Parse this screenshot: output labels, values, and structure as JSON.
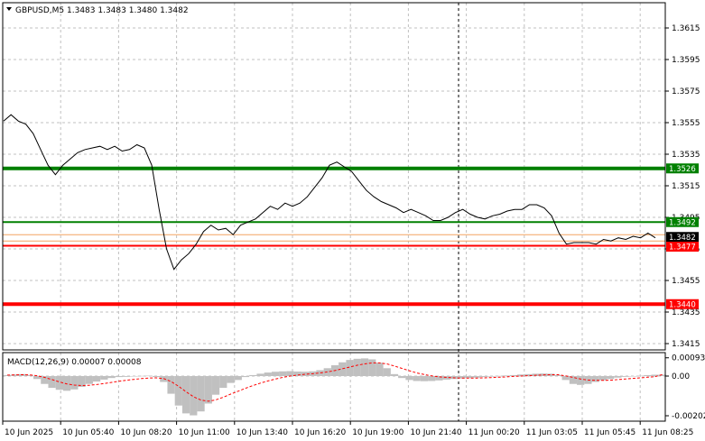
{
  "chart_data": [
    {
      "type": "line",
      "title": "GBPUSD,M5  1.3483 1.3483 1.3480 1.3482",
      "y_ticks": [
        1.3615,
        1.3595,
        1.3575,
        1.3555,
        1.3535,
        1.3515,
        1.3495,
        1.3475,
        1.3455,
        1.3435,
        1.3415
      ],
      "y_tick_labels": [
        "1.3615",
        "1.3595",
        "1.3575",
        "1.3555",
        "1.3535",
        "1.3515",
        "1.3495",
        "1.3475",
        "1.3455",
        "1.3435",
        "1.3415"
      ],
      "ylim": [
        1.3408,
        1.363
      ],
      "x_tick_labels": [
        "10 Jun 2025",
        "10 Jun 05:40",
        "10 Jun 08:20",
        "10 Jun 11:00",
        "10 Jun 13:40",
        "10 Jun 16:20",
        "10 Jun 19:00",
        "10 Jun 21:40",
        "11 Jun 00:20",
        "11 Jun 03:05",
        "11 Jun 05:45",
        "11 Jun 08:25"
      ],
      "levels": [
        {
          "value": 1.3526,
          "label": "1.3526",
          "color": "#008000"
        },
        {
          "value": 1.3492,
          "label": "1.3492",
          "color": "#008000"
        },
        {
          "value": 1.3482,
          "label": "1.3482",
          "color": "#000000"
        },
        {
          "value": 1.3477,
          "label": "1.3477",
          "color": "#ff0000"
        },
        {
          "value": 1.344,
          "label": "1.3440",
          "color": "#ff0000"
        }
      ],
      "series": [
        {
          "values": [
            1.3556,
            1.356,
            1.3556,
            1.3554,
            1.3548,
            1.3538,
            1.3528,
            1.3522,
            1.3528,
            1.3532,
            1.3536,
            1.3538,
            1.3539,
            1.354,
            1.3538,
            1.354,
            1.3537,
            1.3538,
            1.3541,
            1.3539,
            1.3528,
            1.35,
            1.3475,
            1.3462,
            1.3468,
            1.3472,
            1.3478,
            1.3486,
            1.349,
            1.3487,
            1.3488,
            1.3484,
            1.349,
            1.3492,
            1.3494,
            1.3498,
            1.3502,
            1.35,
            1.3504,
            1.3502,
            1.3504,
            1.3508,
            1.3514,
            1.352,
            1.3528,
            1.353,
            1.3527,
            1.3524,
            1.3518,
            1.3512,
            1.3508,
            1.3505,
            1.3503,
            1.3501,
            1.3498,
            1.35,
            1.3498,
            1.3496,
            1.3493,
            1.3493,
            1.3495,
            1.3498,
            1.35,
            1.3497,
            1.3495,
            1.3494,
            1.3496,
            1.3497,
            1.3499,
            1.35,
            1.35,
            1.3503,
            1.3503,
            1.3501,
            1.3496,
            1.3485,
            1.3478,
            1.3479,
            1.3479,
            1.3479,
            1.3478,
            1.3481,
            1.348,
            1.3482,
            1.3481,
            1.3483,
            1.3482,
            1.3485,
            1.3482
          ]
        }
      ]
    },
    {
      "type": "bar",
      "title": "MACD(12,26,9) 0.00007 0.00008",
      "y_ticks": [
        0.00093,
        0.0,
        -0.00202
      ],
      "y_tick_labels": [
        "0.00093",
        "0.00",
        "-0.00202"
      ],
      "ylim": [
        -0.00202,
        0.00093
      ],
      "series": [
        {
          "values": [
            5e-05,
            8e-05,
            0.0001,
            5e-05,
            -0.00015,
            -0.0004,
            -0.0006,
            -0.0007,
            -0.00075,
            -0.00068,
            -0.00055,
            -0.0004,
            -0.00028,
            -0.00018,
            -0.0001,
            -5e-05,
            -4e-05,
            -2e-05,
            1e-05,
            2e-05,
            -5e-05,
            -0.0003,
            -0.0009,
            -0.0015,
            -0.0019,
            -0.002,
            -0.0018,
            -0.0014,
            -0.00095,
            -0.0006,
            -0.00035,
            -0.0002,
            -5e-05,
            5e-05,
            0.00012,
            0.00018,
            0.00022,
            0.00024,
            0.00025,
            0.00023,
            0.00022,
            0.00024,
            0.0003,
            0.0004,
            0.00055,
            0.0007,
            0.00082,
            0.00088,
            0.0009,
            0.00085,
            0.00068,
            0.0004,
            0.0001,
            -0.0001,
            -0.0002,
            -0.00025,
            -0.00026,
            -0.00025,
            -0.00022,
            -0.00018,
            -0.00015,
            -0.00012,
            -0.0001,
            -8e-05,
            -5e-05,
            -3e-05,
            1e-05,
            3e-05,
            5e-05,
            8e-05,
            0.0001,
            0.00012,
            0.00013,
            0.00012,
            5e-05,
            -0.0002,
            -0.0004,
            -0.00045,
            -0.0004,
            -0.0003,
            -0.00022,
            -0.00015,
            -8e-05,
            -4e-05,
            -1e-05,
            2e-05,
            5e-05,
            7e-05,
            7e-05
          ]
        },
        {
          "values": [
            5e-05,
            6e-05,
            7e-05,
            6e-05,
            2e-05,
            -7e-05,
            -0.00018,
            -0.0003,
            -0.0004,
            -0.00046,
            -0.00048,
            -0.00047,
            -0.00043,
            -0.00038,
            -0.00032,
            -0.00026,
            -0.00021,
            -0.00017,
            -0.00013,
            -0.0001,
            -9e-05,
            -0.00013,
            -0.00028,
            -0.00052,
            -0.0008,
            -0.00105,
            -0.00122,
            -0.00128,
            -0.00121,
            -0.00108,
            -0.00092,
            -0.00077,
            -0.00062,
            -0.00048,
            -0.00036,
            -0.00025,
            -0.00015,
            -7e-05,
            0.0,
            5e-05,
            9e-05,
            0.00012,
            0.00016,
            0.00021,
            0.00028,
            0.00037,
            0.00046,
            0.00055,
            0.00062,
            0.00067,
            0.00067,
            0.00062,
            0.00051,
            0.00039,
            0.00027,
            0.00016,
            8e-05,
            1e-05,
            -4e-05,
            -7e-05,
            -9e-05,
            -0.0001,
            -0.0001,
            -0.0001,
            -9e-05,
            -8e-05,
            -6e-05,
            -4e-05,
            -2e-05,
            0.0,
            2e-05,
            4e-05,
            6e-05,
            7e-05,
            7e-05,
            1e-05,
            -7e-05,
            -0.00015,
            -0.0002,
            -0.00022,
            -0.00022,
            -0.00021,
            -0.00018,
            -0.00015,
            -0.00012,
            -9e-05,
            -6e-05,
            -3e-05,
            8e-05
          ]
        }
      ]
    }
  ]
}
